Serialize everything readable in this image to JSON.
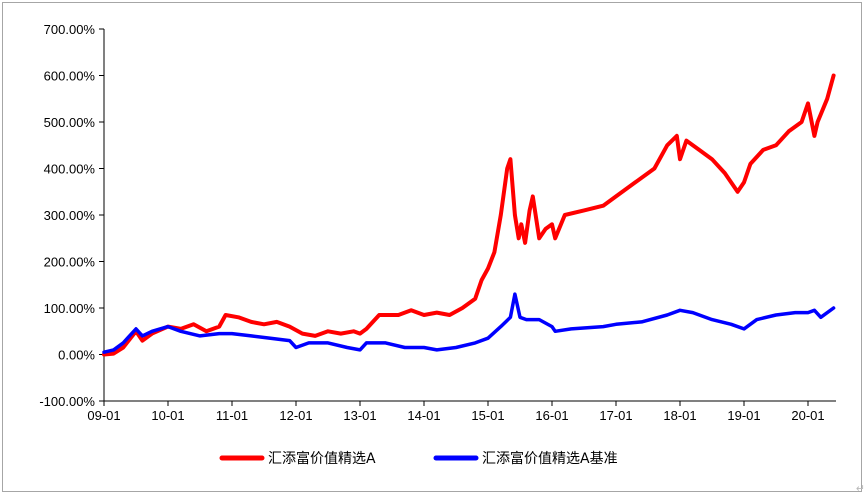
{
  "chart_data": {
    "type": "line",
    "title": "",
    "xlabel": "",
    "ylabel": "",
    "ylim": [
      -100,
      700
    ],
    "y_ticks": [
      "700.00%",
      "600.00%",
      "500.00%",
      "400.00%",
      "300.00%",
      "200.00%",
      "100.00%",
      "0.00%",
      "-100.00%"
    ],
    "x_ticks": [
      "09-01",
      "10-01",
      "11-01",
      "12-01",
      "13-01",
      "14-01",
      "15-01",
      "16-01",
      "17-01",
      "18-01",
      "19-01",
      "20-01"
    ],
    "legend_position": "bottom",
    "grid": false,
    "series": [
      {
        "name": "汇添富价值精选A",
        "color": "#ff0000",
        "x": [
          2009.0,
          2009.15,
          2009.3,
          2009.5,
          2009.6,
          2009.75,
          2010.0,
          2010.2,
          2010.4,
          2010.6,
          2010.8,
          2010.9,
          2011.1,
          2011.3,
          2011.5,
          2011.7,
          2011.9,
          2012.1,
          2012.3,
          2012.5,
          2012.7,
          2012.9,
          2013.0,
          2013.1,
          2013.3,
          2013.6,
          2013.8,
          2014.0,
          2014.2,
          2014.4,
          2014.6,
          2014.8,
          2014.9,
          2015.0,
          2015.1,
          2015.2,
          2015.3,
          2015.35,
          2015.42,
          2015.48,
          2015.52,
          2015.58,
          2015.65,
          2015.7,
          2015.8,
          2015.9,
          2016.0,
          2016.05,
          2016.2,
          2016.5,
          2016.8,
          2017.0,
          2017.3,
          2017.6,
          2017.8,
          2017.95,
          2018.0,
          2018.1,
          2018.3,
          2018.5,
          2018.7,
          2018.9,
          2019.0,
          2019.1,
          2019.3,
          2019.5,
          2019.7,
          2019.9,
          2020.0,
          2020.1,
          2020.15,
          2020.3,
          2020.4
        ],
        "values": [
          0,
          2,
          15,
          50,
          30,
          45,
          60,
          55,
          65,
          50,
          60,
          85,
          80,
          70,
          65,
          70,
          60,
          45,
          40,
          50,
          45,
          50,
          45,
          55,
          85,
          85,
          95,
          85,
          90,
          85,
          100,
          120,
          160,
          185,
          220,
          300,
          400,
          420,
          300,
          250,
          280,
          240,
          310,
          340,
          250,
          270,
          280,
          250,
          300,
          310,
          320,
          340,
          370,
          400,
          450,
          470,
          420,
          460,
          440,
          420,
          390,
          350,
          370,
          410,
          440,
          450,
          480,
          500,
          540,
          470,
          500,
          550,
          600
        ]
      },
      {
        "name": "汇添富价值精选A基准",
        "color": "#0000ff",
        "x": [
          2009.0,
          2009.15,
          2009.3,
          2009.5,
          2009.6,
          2009.75,
          2010.0,
          2010.2,
          2010.5,
          2010.8,
          2011.0,
          2011.3,
          2011.6,
          2011.9,
          2012.0,
          2012.2,
          2012.5,
          2012.8,
          2013.0,
          2013.1,
          2013.4,
          2013.7,
          2014.0,
          2014.2,
          2014.5,
          2014.8,
          2015.0,
          2015.2,
          2015.35,
          2015.42,
          2015.5,
          2015.6,
          2015.8,
          2016.0,
          2016.05,
          2016.3,
          2016.8,
          2017.0,
          2017.4,
          2017.8,
          2018.0,
          2018.2,
          2018.5,
          2018.8,
          2019.0,
          2019.2,
          2019.5,
          2019.8,
          2020.0,
          2020.1,
          2020.2,
          2020.4
        ],
        "values": [
          5,
          10,
          25,
          55,
          40,
          50,
          60,
          50,
          40,
          45,
          45,
          40,
          35,
          30,
          15,
          25,
          25,
          15,
          10,
          25,
          25,
          15,
          15,
          10,
          15,
          25,
          35,
          60,
          80,
          130,
          80,
          75,
          75,
          60,
          50,
          55,
          60,
          65,
          70,
          85,
          95,
          90,
          75,
          65,
          55,
          75,
          85,
          90,
          90,
          95,
          80,
          100
        ]
      }
    ]
  }
}
